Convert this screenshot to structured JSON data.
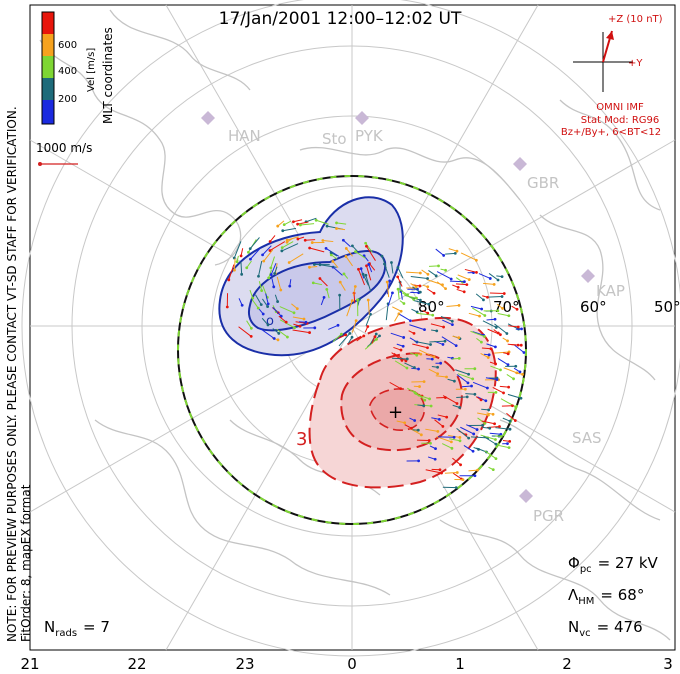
{
  "title": "17/Jan/2001 12:00–12:02 UT",
  "colorbar": {
    "label": "Vel [m/s]",
    "coord_label": "MLT coordinates",
    "ticks": [
      "600",
      "400",
      "200"
    ],
    "colors": [
      "#e8160c",
      "#f6a21e",
      "#7ed633",
      "#1e6b7a",
      "#1b2adf"
    ]
  },
  "vector_scale_label": "1000 m/s",
  "imf": {
    "z_label": "+Z (10 nT)",
    "y_label": "+Y",
    "source": "OMNI IMF",
    "stat_mod": "Stat Mod: RG96",
    "condition": "Bz+/By+, 6<BT<12",
    "color": "#d01010"
  },
  "stations": [
    "HAN",
    "Sto",
    "PYK",
    "GBR",
    "KAP",
    "SAS",
    "PGR"
  ],
  "latitude_labels": [
    "80°",
    "70°",
    "60°",
    "50°"
  ],
  "mlt_ticks": [
    "21",
    "22",
    "23",
    "0",
    "1",
    "2",
    "3"
  ],
  "contour_label": "3",
  "note_line1": "NOTE: FOR PREVIEW PURPOSES ONLY. PLEASE CONTACT VT-SD STAFF FOR VERIFICATION.",
  "note_line2": "FitOrder: 8, mapEX format",
  "stats": {
    "phi_pc_label": "Φ",
    "phi_pc_sub": "pc",
    "phi_pc_value": "= 27 kV",
    "lambda_hm_label": "Λ",
    "lambda_hm_sub": "HM",
    "lambda_hm_value": "= 68°",
    "n_vc_label": "N",
    "n_vc_sub": "vc",
    "n_vc_value": "= 476",
    "n_rads_label": "N",
    "n_rads_sub": "rads",
    "n_rads_value": "= 7"
  },
  "colors": {
    "negative_cell": "#1a2fa8",
    "positive_cell": "#d42020",
    "boundary": "#111111",
    "grid": "#c8c8c8",
    "coast": "#c4c4c4"
  }
}
